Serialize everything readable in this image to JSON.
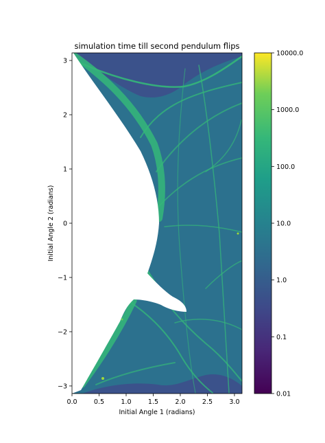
{
  "chart_data": {
    "type": "heatmap",
    "title": "simulation time till second pendulum flips",
    "xlabel": "Initial Angle 1 (radians)",
    "ylabel": "Initial Angle 2 (radians)",
    "xlim": [
      0.0,
      3.14
    ],
    "ylim": [
      -3.14,
      3.14
    ],
    "x_ticks": [
      0.0,
      0.5,
      1.0,
      1.5,
      2.0,
      2.5,
      3.0
    ],
    "x_tick_labels": [
      "0.0",
      "0.5",
      "1.0",
      "1.5",
      "2.0",
      "2.5",
      "3.0"
    ],
    "y_ticks": [
      -3,
      -2,
      -1,
      0,
      1,
      2,
      3
    ],
    "y_tick_labels": [
      "−3",
      "−2",
      "−1",
      "0",
      "1",
      "2",
      "3"
    ],
    "colorbar": {
      "scale": "log",
      "colormap": "viridis",
      "range": [
        0.01,
        10000.0
      ],
      "ticks": [
        0.01,
        0.1,
        1.0,
        10.0,
        100.0,
        1000.0,
        10000.0
      ],
      "tick_labels": [
        "0.01",
        "0.1",
        "1.0",
        "10.0",
        "100.0",
        "1000.0",
        "10000.0"
      ]
    },
    "colors": {
      "background_field": "#2c718e",
      "top_region": "#3b528b",
      "bottom_region": "#3b528b",
      "filaments": "#35b779",
      "no_flip_region": "#ffffff"
    }
  }
}
